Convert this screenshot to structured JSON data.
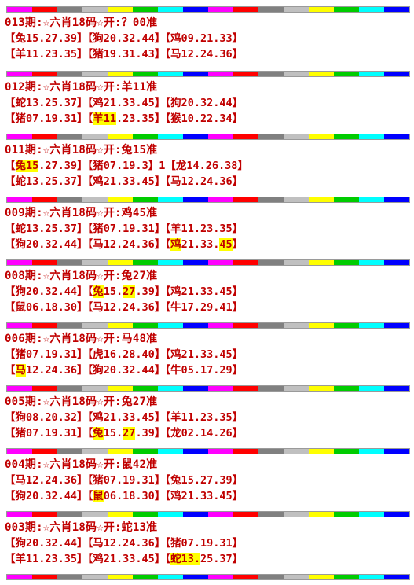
{
  "stripe_colors": [
    "#ff00ff",
    "#ff0000",
    "#808080",
    "#c0c0c0",
    "#ffff00",
    "#00cc00",
    "#00ffff",
    "#0000ff",
    "#ff00ff",
    "#ff0000",
    "#808080",
    "#c0c0c0",
    "#ffff00",
    "#00cc00",
    "#00ffff",
    "#0000ff"
  ],
  "periods": [
    {
      "title": "013期:☆六肖18码☆开:？00准",
      "rows": [
        [
          {
            "t": "【"
          },
          {
            "t": "兔15.27.39"
          },
          {
            "t": "】【"
          },
          {
            "t": "狗20.32.44"
          },
          {
            "t": "】【"
          },
          {
            "t": "鸡09.21.33"
          },
          {
            "t": "】"
          }
        ],
        [
          {
            "t": "【"
          },
          {
            "t": "羊11.23.35"
          },
          {
            "t": "】【"
          },
          {
            "t": "猪19.31.43"
          },
          {
            "t": "】【"
          },
          {
            "t": "马12.24.36"
          },
          {
            "t": "】"
          }
        ]
      ]
    },
    {
      "title": "012期:☆六肖18码☆开:羊11准",
      "rows": [
        [
          {
            "t": "【"
          },
          {
            "t": "蛇13.25.37"
          },
          {
            "t": "】【"
          },
          {
            "t": "鸡21.33.45"
          },
          {
            "t": "】【"
          },
          {
            "t": "狗20.32.44"
          },
          {
            "t": "】"
          }
        ],
        [
          {
            "t": "【"
          },
          {
            "t": "猪07.19.31"
          },
          {
            "t": "】【"
          },
          {
            "t": "羊11",
            "h": true
          },
          {
            "t": ".23.35"
          },
          {
            "t": "】【"
          },
          {
            "t": "猴10.22.34"
          },
          {
            "t": "】"
          }
        ]
      ]
    },
    {
      "title": "011期:☆六肖18码☆开:兔15准",
      "rows": [
        [
          {
            "t": "【"
          },
          {
            "t": "兔15",
            "h": true
          },
          {
            "t": ".27.39"
          },
          {
            "t": "】【"
          },
          {
            "t": "猪07.19.3"
          },
          {
            "t": "】1"
          },
          {
            "t": "【"
          },
          {
            "t": "龙14.26.38"
          },
          {
            "t": "】"
          }
        ],
        [
          {
            "t": "【"
          },
          {
            "t": "蛇13.25.37"
          },
          {
            "t": "】【"
          },
          {
            "t": "鸡21.33.45"
          },
          {
            "t": "】【"
          },
          {
            "t": "马12.24.36"
          },
          {
            "t": "】"
          }
        ]
      ]
    },
    {
      "title": "009期:☆六肖18码☆开:鸡45准",
      "rows": [
        [
          {
            "t": "【"
          },
          {
            "t": "蛇13.25.37"
          },
          {
            "t": "】【"
          },
          {
            "t": "猪07.19.31"
          },
          {
            "t": "】【"
          },
          {
            "t": "羊11.23.35"
          },
          {
            "t": "】"
          }
        ],
        [
          {
            "t": "【"
          },
          {
            "t": "狗20.32.44"
          },
          {
            "t": "】【"
          },
          {
            "t": "马12.24.36"
          },
          {
            "t": "】【"
          },
          {
            "t": "鸡",
            "h": true
          },
          {
            "t": "21.33."
          },
          {
            "t": "45",
            "h": true
          },
          {
            "t": "】"
          }
        ]
      ]
    },
    {
      "title": "008期:☆六肖18码☆开:兔27准",
      "rows": [
        [
          {
            "t": "【"
          },
          {
            "t": "狗20.32.44"
          },
          {
            "t": "】【"
          },
          {
            "t": "兔",
            "h": true
          },
          {
            "t": "15."
          },
          {
            "t": "27",
            "h": true
          },
          {
            "t": ".39"
          },
          {
            "t": "】【"
          },
          {
            "t": "鸡21.33.45"
          },
          {
            "t": "】"
          }
        ],
        [
          {
            "t": "【"
          },
          {
            "t": "鼠06.18.30"
          },
          {
            "t": "】【"
          },
          {
            "t": "马12.24.36"
          },
          {
            "t": "】【"
          },
          {
            "t": "牛17.29.41"
          },
          {
            "t": "】"
          }
        ]
      ]
    },
    {
      "title": "006期:☆六肖18码☆开:马48准",
      "rows": [
        [
          {
            "t": "【"
          },
          {
            "t": "猪07.19.31"
          },
          {
            "t": "】【"
          },
          {
            "t": "虎16.28.40"
          },
          {
            "t": "】【"
          },
          {
            "t": "鸡21.33.45"
          },
          {
            "t": "】"
          }
        ],
        [
          {
            "t": "【"
          },
          {
            "t": "马",
            "h": true
          },
          {
            "t": "12.24.36"
          },
          {
            "t": "】【"
          },
          {
            "t": "狗20.32.44"
          },
          {
            "t": "】【"
          },
          {
            "t": "牛05.17.29"
          },
          {
            "t": "】"
          }
        ]
      ]
    },
    {
      "title": "005期:☆六肖18码☆开:兔27准",
      "rows": [
        [
          {
            "t": "【"
          },
          {
            "t": "狗08.20.32"
          },
          {
            "t": "】【"
          },
          {
            "t": "鸡21.33.45"
          },
          {
            "t": "】【"
          },
          {
            "t": "羊11.23.35"
          },
          {
            "t": "】"
          }
        ],
        [
          {
            "t": "【"
          },
          {
            "t": "猪07.19.31"
          },
          {
            "t": "】【"
          },
          {
            "t": "兔",
            "h": true
          },
          {
            "t": "15."
          },
          {
            "t": "27",
            "h": true
          },
          {
            "t": ".39"
          },
          {
            "t": "】【"
          },
          {
            "t": "龙02.14.26"
          },
          {
            "t": "】"
          }
        ]
      ]
    },
    {
      "title": "004期:☆六肖18码☆开:鼠42准",
      "rows": [
        [
          {
            "t": "【"
          },
          {
            "t": "马12.24.36"
          },
          {
            "t": "】【"
          },
          {
            "t": "猪07.19.31"
          },
          {
            "t": "】【"
          },
          {
            "t": "兔15.27.39"
          },
          {
            "t": "】"
          }
        ],
        [
          {
            "t": "【"
          },
          {
            "t": "狗20.32.44"
          },
          {
            "t": "】【"
          },
          {
            "t": "鼠",
            "h": true
          },
          {
            "t": "06.18.30"
          },
          {
            "t": "】【"
          },
          {
            "t": "鸡21.33.45"
          },
          {
            "t": "】"
          }
        ]
      ]
    },
    {
      "title": "003期:☆六肖18码☆开:蛇13准",
      "rows": [
        [
          {
            "t": "【"
          },
          {
            "t": "狗20.32.44"
          },
          {
            "t": "】【"
          },
          {
            "t": "马12.24.36"
          },
          {
            "t": "】【"
          },
          {
            "t": "猪07.19.31"
          },
          {
            "t": "】"
          }
        ],
        [
          {
            "t": "【"
          },
          {
            "t": "羊11.23.35"
          },
          {
            "t": "】【"
          },
          {
            "t": "鸡21.33.45"
          },
          {
            "t": "】【"
          },
          {
            "t": "蛇13.",
            "h": true
          },
          {
            "t": "25.37"
          },
          {
            "t": "】"
          }
        ]
      ]
    }
  ]
}
